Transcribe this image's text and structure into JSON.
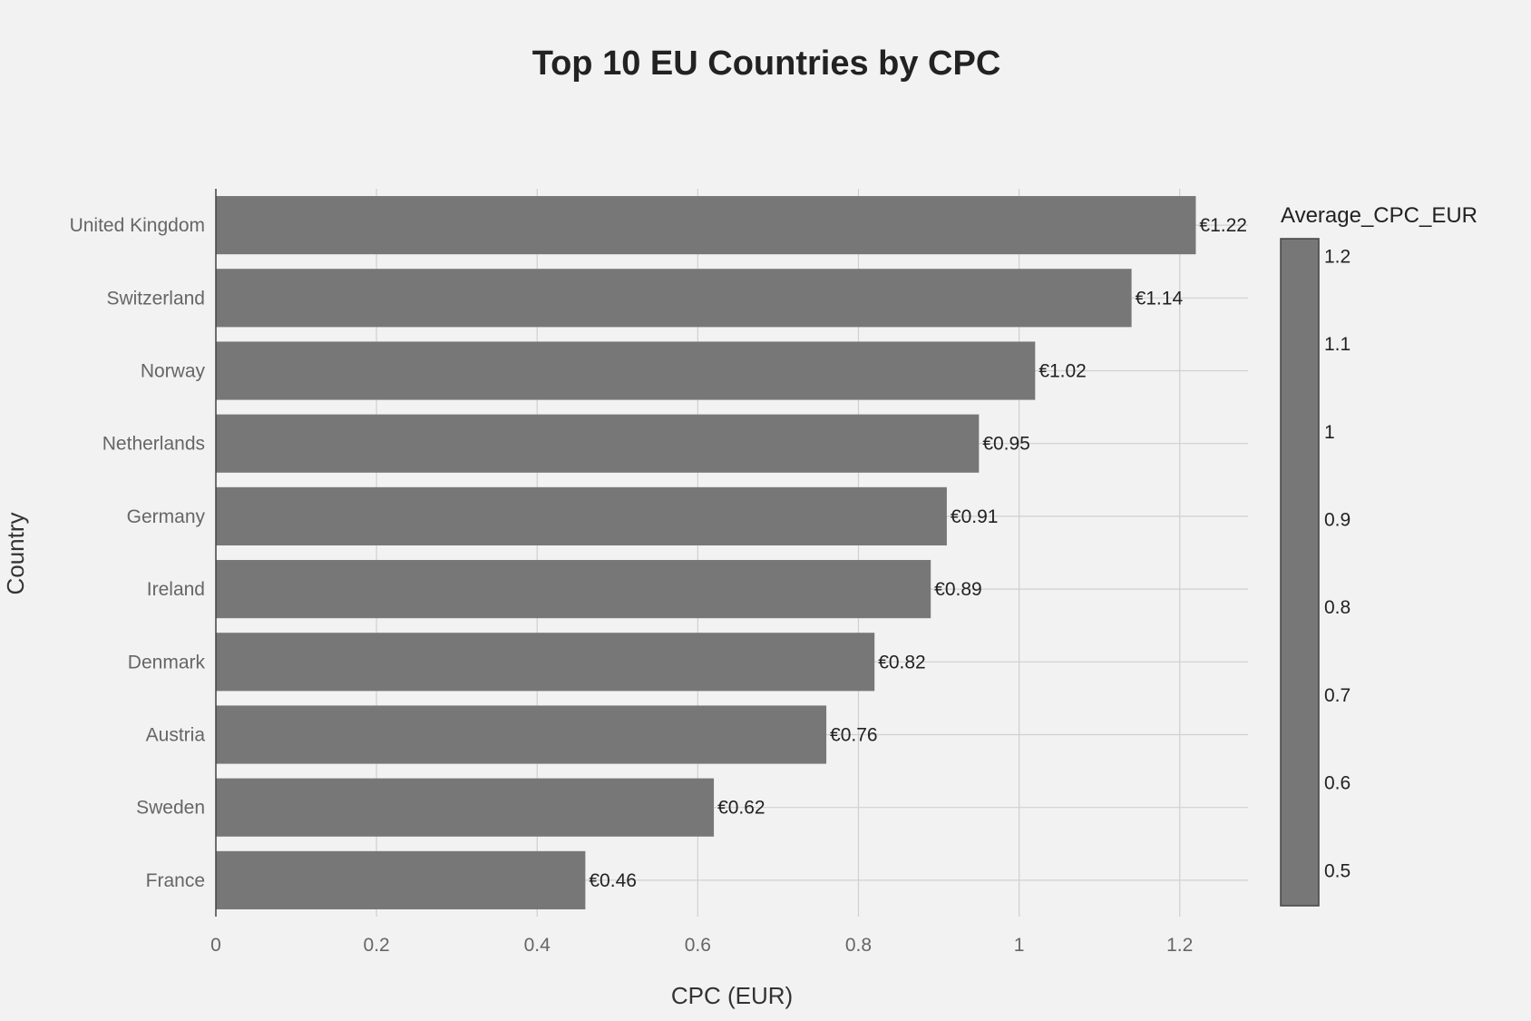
{
  "chart_data": {
    "type": "bar",
    "orientation": "horizontal",
    "title": "Top 10 EU Countries by CPC",
    "xlabel": "CPC (EUR)",
    "ylabel": "Country",
    "categories": [
      "United Kingdom",
      "Switzerland",
      "Norway",
      "Netherlands",
      "Germany",
      "Ireland",
      "Denmark",
      "Austria",
      "Sweden",
      "France"
    ],
    "values": [
      1.22,
      1.14,
      1.02,
      0.95,
      0.91,
      0.89,
      0.82,
      0.76,
      0.62,
      0.46
    ],
    "data_labels": [
      "€1.22",
      "€1.14",
      "€1.02",
      "€0.95",
      "€0.91",
      "€0.89",
      "€0.82",
      "€0.76",
      "€0.62",
      "€0.46"
    ],
    "xlim": [
      0,
      1.285
    ],
    "xticks": [
      0,
      0.2,
      0.4,
      0.6,
      0.8,
      1,
      1.2
    ],
    "xtick_labels": [
      "0",
      "0.2",
      "0.4",
      "0.6",
      "0.8",
      "1",
      "1.2"
    ],
    "grid": true,
    "bar_color": "#777777",
    "colorbar": {
      "title": "Average_CPC_EUR",
      "range": [
        0.46,
        1.22
      ],
      "ticks": [
        0.5,
        0.6,
        0.7,
        0.8,
        0.9,
        1,
        1.1,
        1.2
      ],
      "tick_labels": [
        "0.5",
        "0.6",
        "0.7",
        "0.8",
        "0.9",
        "1",
        "1.1",
        "1.2"
      ],
      "color": "#777777"
    }
  }
}
